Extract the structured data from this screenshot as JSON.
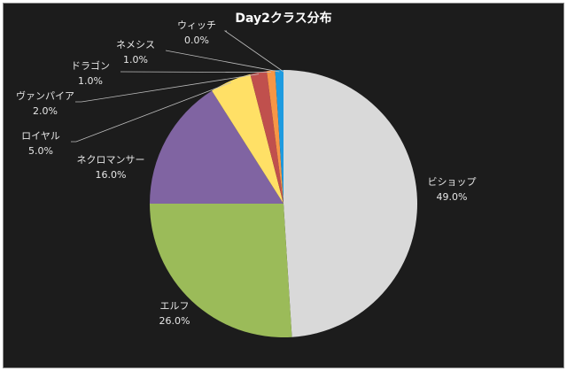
{
  "chart_data": {
    "type": "pie",
    "title": "Day2クラス分布",
    "slices": [
      {
        "label": "ビショップ",
        "value": 49.0,
        "value_label": "49.0%",
        "color": "#d9d9d9"
      },
      {
        "label": "エルフ",
        "value": 26.0,
        "value_label": "26.0%",
        "color": "#9bbb59"
      },
      {
        "label": "ネクロマンサー",
        "value": 16.0,
        "value_label": "16.0%",
        "color": "#8064a2"
      },
      {
        "label": "ロイヤル",
        "value": 5.0,
        "value_label": "5.0%",
        "color": "#ffe066"
      },
      {
        "label": "ヴァンパイア",
        "value": 2.0,
        "value_label": "2.0%",
        "color": "#c0504d"
      },
      {
        "label": "ドラゴン",
        "value": 1.0,
        "value_label": "1.0%",
        "color": "#f79646"
      },
      {
        "label": "ネメシス",
        "value": 1.0,
        "value_label": "1.0%",
        "color": "#1e9be0"
      },
      {
        "label": "ウィッチ",
        "value": 0.0,
        "value_label": "0.0%",
        "color": "#2f4f7f"
      }
    ],
    "legend": "none",
    "label_placement": "outside-with-leader-lines"
  }
}
